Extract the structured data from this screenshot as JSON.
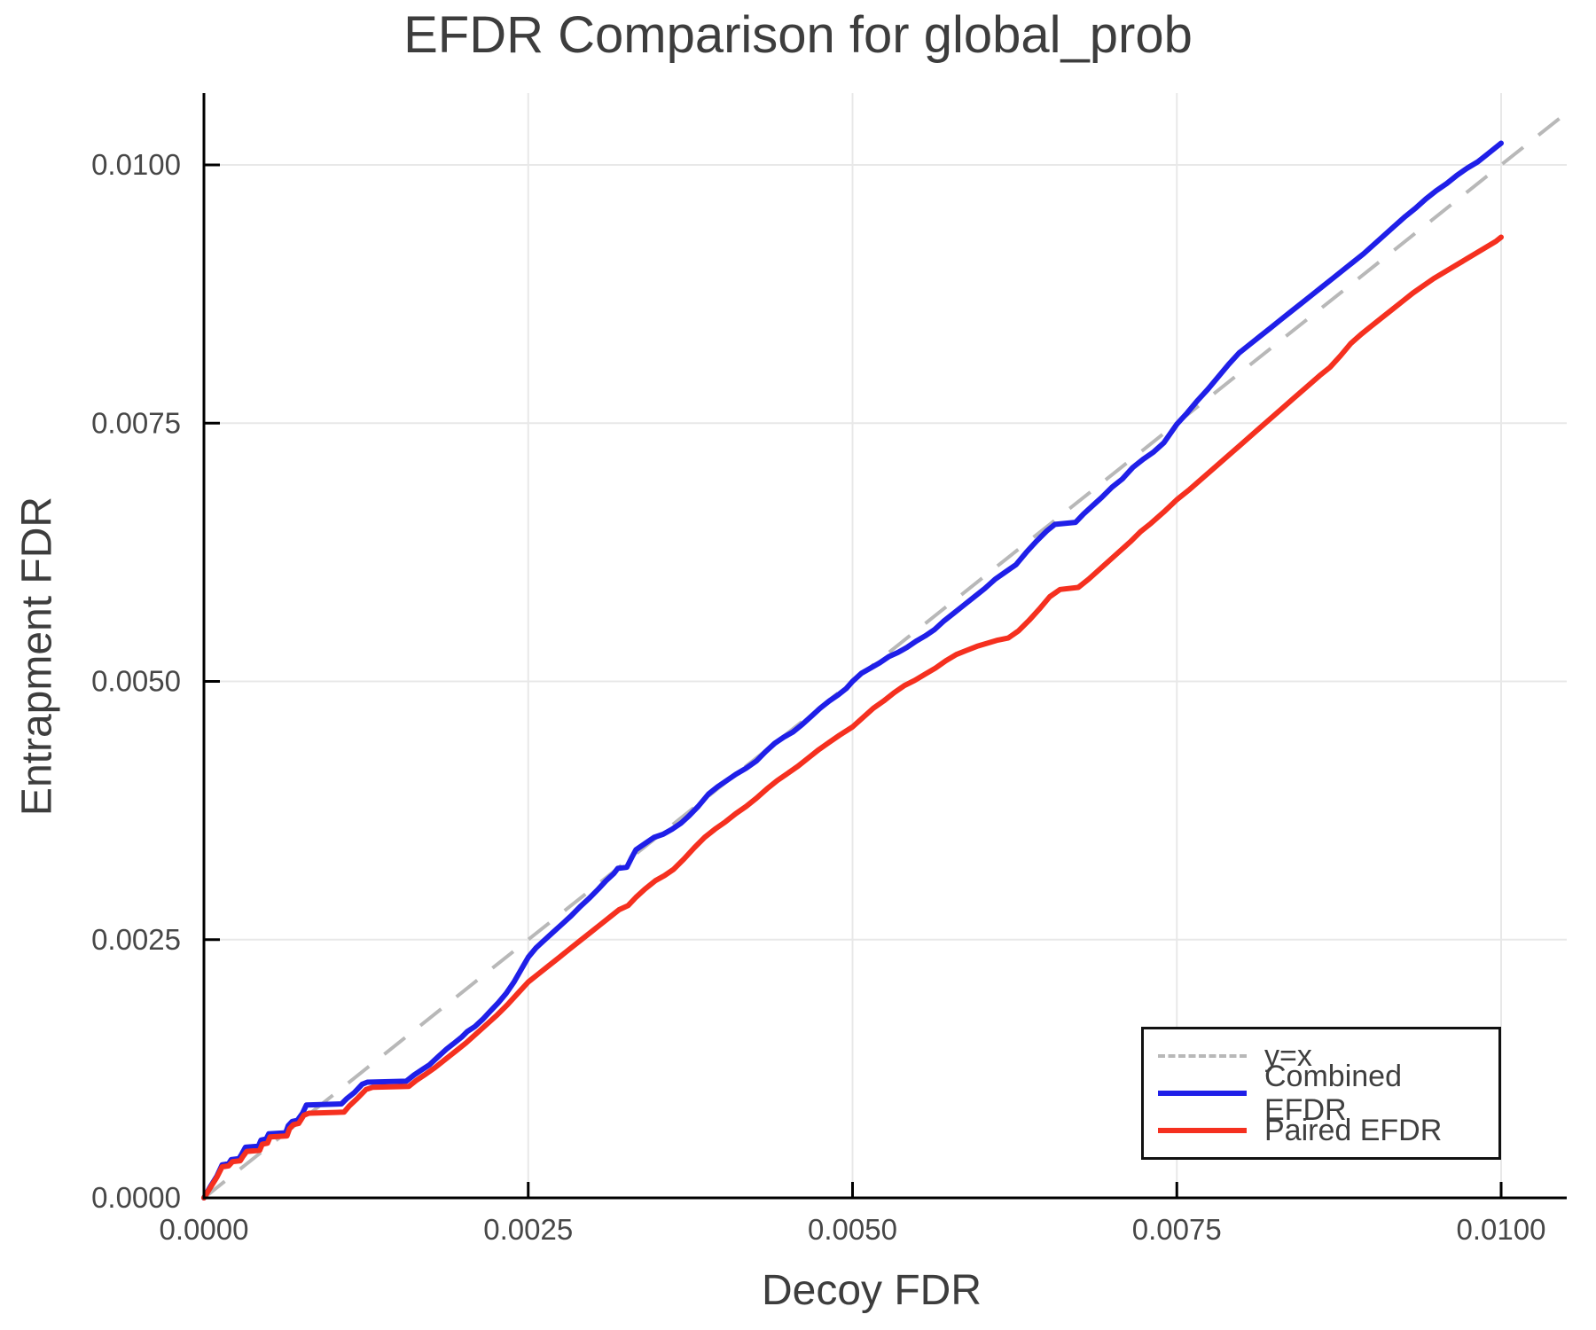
{
  "chart_data": {
    "type": "line",
    "title": "EFDR Comparison for global_prob",
    "xlabel": "Decoy FDR",
    "ylabel": "Entrapment FDR",
    "x_ticks": [
      0.0,
      0.0025,
      0.005,
      0.0075,
      0.01
    ],
    "y_ticks": [
      0.0,
      0.0025,
      0.005,
      0.0075,
      0.01
    ],
    "x_tick_labels": [
      "0.0000",
      "0.0025",
      "0.0050",
      "0.0075",
      "0.0100"
    ],
    "y_tick_labels": [
      "0.0000",
      "0.0025",
      "0.0050",
      "0.0075",
      "0.0100"
    ],
    "xlim": [
      0.0,
      0.0105
    ],
    "ylim": [
      0.0,
      0.0107
    ],
    "grid": true,
    "legend_position": "lower right",
    "colors": {
      "grid": "#e8e8e8",
      "spine": "#000000",
      "tick_label": "#474747",
      "title_text": "#3d3d3d",
      "reference": "#b8b8b8",
      "combined": "#1f1fe8",
      "paired": "#f5301f"
    },
    "reference_line": {
      "label": "y=x",
      "style": "dashed",
      "color": "#b8b8b8",
      "from": [
        0,
        0
      ],
      "slope": 1
    },
    "value_scale": 0.0001,
    "series": [
      {
        "name": "Combined EFDR",
        "color": "#1f1fe8",
        "style": "solid",
        "points": [
          [
            0,
            0
          ],
          [
            0.5,
            1.1
          ],
          [
            1,
            2.1
          ],
          [
            1.4,
            3.2
          ],
          [
            1.9,
            3.3
          ],
          [
            2.1,
            3.7
          ],
          [
            2.7,
            3.8
          ],
          [
            2.9,
            4.2
          ],
          [
            3.2,
            4.9
          ],
          [
            4.2,
            5
          ],
          [
            4.4,
            5.6
          ],
          [
            4.8,
            5.7
          ],
          [
            5,
            6.2
          ],
          [
            6.3,
            6.3
          ],
          [
            6.5,
            7
          ],
          [
            6.8,
            7.4
          ],
          [
            7.2,
            7.5
          ],
          [
            7.6,
            8.2
          ],
          [
            7.9,
            9
          ],
          [
            10.6,
            9.1
          ],
          [
            11,
            9.6
          ],
          [
            11.6,
            10.2
          ],
          [
            12.2,
            11
          ],
          [
            12.6,
            11.2
          ],
          [
            15.6,
            11.3
          ],
          [
            16.2,
            11.9
          ],
          [
            16.8,
            12.4
          ],
          [
            17.4,
            12.9
          ],
          [
            18,
            13.6
          ],
          [
            18.7,
            14.4
          ],
          [
            19.3,
            15
          ],
          [
            19.9,
            15.6
          ],
          [
            20.3,
            16.1
          ],
          [
            20.9,
            16.6
          ],
          [
            21.5,
            17.3
          ],
          [
            22.1,
            18.1
          ],
          [
            22.7,
            18.9
          ],
          [
            23.3,
            19.8
          ],
          [
            23.9,
            20.9
          ],
          [
            24.5,
            22.2
          ],
          [
            25,
            23.3
          ],
          [
            25.6,
            24.2
          ],
          [
            26.2,
            24.9
          ],
          [
            26.9,
            25.7
          ],
          [
            27.6,
            26.5
          ],
          [
            28.3,
            27.3
          ],
          [
            29,
            28.2
          ],
          [
            29.7,
            29
          ],
          [
            30.4,
            29.9
          ],
          [
            31,
            30.7
          ],
          [
            31.6,
            31.4
          ],
          [
            31.9,
            31.9
          ],
          [
            32.6,
            32
          ],
          [
            33,
            33
          ],
          [
            33.3,
            33.7
          ],
          [
            34,
            34.3
          ],
          [
            34.7,
            34.9
          ],
          [
            35.4,
            35.2
          ],
          [
            36.1,
            35.7
          ],
          [
            36.8,
            36.3
          ],
          [
            37.4,
            37
          ],
          [
            38.1,
            37.9
          ],
          [
            38.9,
            39.1
          ],
          [
            39.6,
            39.8
          ],
          [
            40.3,
            40.4
          ],
          [
            41,
            41
          ],
          [
            41.8,
            41.6
          ],
          [
            42.6,
            42.3
          ],
          [
            43.3,
            43.2
          ],
          [
            44,
            44
          ],
          [
            44.7,
            44.6
          ],
          [
            45.4,
            45.1
          ],
          [
            46.1,
            45.8
          ],
          [
            46.8,
            46.6
          ],
          [
            47.5,
            47.4
          ],
          [
            48.2,
            48.1
          ],
          [
            48.9,
            48.7
          ],
          [
            49.5,
            49.3
          ],
          [
            50,
            50
          ],
          [
            50.7,
            50.8
          ],
          [
            51.4,
            51.3
          ],
          [
            52.1,
            51.8
          ],
          [
            52.8,
            52.4
          ],
          [
            53.5,
            52.8
          ],
          [
            54.2,
            53.3
          ],
          [
            54.9,
            53.9
          ],
          [
            55.6,
            54.4
          ],
          [
            56.3,
            55
          ],
          [
            57,
            55.8
          ],
          [
            57.8,
            56.6
          ],
          [
            58.6,
            57.4
          ],
          [
            59.4,
            58.2
          ],
          [
            60.2,
            59
          ],
          [
            61,
            59.9
          ],
          [
            61.8,
            60.6
          ],
          [
            62.6,
            61.3
          ],
          [
            63.4,
            62.5
          ],
          [
            64.2,
            63.6
          ],
          [
            65,
            64.6
          ],
          [
            65.6,
            65.2
          ],
          [
            67.2,
            65.4
          ],
          [
            67.8,
            66.2
          ],
          [
            68.5,
            67
          ],
          [
            69.2,
            67.8
          ],
          [
            70,
            68.8
          ],
          [
            70.8,
            69.6
          ],
          [
            71.6,
            70.7
          ],
          [
            72.4,
            71.5
          ],
          [
            73.2,
            72.2
          ],
          [
            74,
            73.1
          ],
          [
            75,
            74.9
          ],
          [
            75.8,
            76
          ],
          [
            76.6,
            77.2
          ],
          [
            77.4,
            78.3
          ],
          [
            78.2,
            79.5
          ],
          [
            79,
            80.7
          ],
          [
            79.8,
            81.8
          ],
          [
            80.6,
            82.6
          ],
          [
            81.4,
            83.4
          ],
          [
            82.2,
            84.2
          ],
          [
            83,
            85
          ],
          [
            83.8,
            85.8
          ],
          [
            84.6,
            86.6
          ],
          [
            85.4,
            87.4
          ],
          [
            86.2,
            88.2
          ],
          [
            87,
            89
          ],
          [
            87.8,
            89.8
          ],
          [
            88.6,
            90.6
          ],
          [
            89.4,
            91.4
          ],
          [
            90.2,
            92.3
          ],
          [
            91,
            93.2
          ],
          [
            91.8,
            94.1
          ],
          [
            92.6,
            95
          ],
          [
            93.4,
            95.8
          ],
          [
            94.2,
            96.7
          ],
          [
            95,
            97.5
          ],
          [
            95.8,
            98.2
          ],
          [
            96.6,
            99
          ],
          [
            97.4,
            99.7
          ],
          [
            98.2,
            100.3
          ],
          [
            99,
            101.1
          ],
          [
            99.6,
            101.7
          ],
          [
            100,
            102.1
          ]
        ]
      },
      {
        "name": "Paired EFDR",
        "color": "#f5301f",
        "style": "solid",
        "points": [
          [
            0,
            0
          ],
          [
            0.5,
            1
          ],
          [
            1,
            2
          ],
          [
            1.4,
            3
          ],
          [
            1.9,
            3.1
          ],
          [
            2.2,
            3.5
          ],
          [
            2.8,
            3.6
          ],
          [
            3,
            4
          ],
          [
            3.3,
            4.5
          ],
          [
            4.3,
            4.6
          ],
          [
            4.5,
            5.2
          ],
          [
            4.9,
            5.3
          ],
          [
            5.1,
            5.9
          ],
          [
            6.4,
            6
          ],
          [
            6.6,
            6.7
          ],
          [
            6.9,
            7.1
          ],
          [
            7.3,
            7.2
          ],
          [
            7.7,
            8
          ],
          [
            8.1,
            8.2
          ],
          [
            10.8,
            8.3
          ],
          [
            11.2,
            8.9
          ],
          [
            11.8,
            9.6
          ],
          [
            12.5,
            10.5
          ],
          [
            13,
            10.7
          ],
          [
            15.8,
            10.8
          ],
          [
            16.4,
            11.4
          ],
          [
            17,
            11.9
          ],
          [
            17.8,
            12.6
          ],
          [
            18.6,
            13.4
          ],
          [
            19.4,
            14.2
          ],
          [
            20.2,
            15
          ],
          [
            21,
            15.9
          ],
          [
            21.8,
            16.8
          ],
          [
            22.6,
            17.7
          ],
          [
            23.4,
            18.7
          ],
          [
            24.2,
            19.8
          ],
          [
            25,
            20.9
          ],
          [
            25.8,
            21.7
          ],
          [
            26.6,
            22.5
          ],
          [
            27.4,
            23.3
          ],
          [
            28.2,
            24.1
          ],
          [
            29,
            24.9
          ],
          [
            29.8,
            25.7
          ],
          [
            30.6,
            26.5
          ],
          [
            31.4,
            27.3
          ],
          [
            32,
            27.9
          ],
          [
            32.7,
            28.3
          ],
          [
            33.3,
            29.1
          ],
          [
            34,
            29.9
          ],
          [
            34.8,
            30.7
          ],
          [
            35.5,
            31.2
          ],
          [
            36.2,
            31.8
          ],
          [
            37,
            32.8
          ],
          [
            37.8,
            33.9
          ],
          [
            38.6,
            34.9
          ],
          [
            39.4,
            35.7
          ],
          [
            40.2,
            36.4
          ],
          [
            41,
            37.2
          ],
          [
            41.8,
            37.9
          ],
          [
            42.6,
            38.7
          ],
          [
            43.4,
            39.6
          ],
          [
            44.2,
            40.4
          ],
          [
            45,
            41.1
          ],
          [
            45.8,
            41.8
          ],
          [
            46.6,
            42.6
          ],
          [
            47.4,
            43.4
          ],
          [
            48.2,
            44.1
          ],
          [
            49,
            44.8
          ],
          [
            50,
            45.6
          ],
          [
            50.8,
            46.5
          ],
          [
            51.6,
            47.4
          ],
          [
            52.4,
            48.1
          ],
          [
            53.2,
            48.9
          ],
          [
            54,
            49.6
          ],
          [
            54.8,
            50.1
          ],
          [
            55.6,
            50.7
          ],
          [
            56.4,
            51.3
          ],
          [
            57.2,
            52
          ],
          [
            58,
            52.6
          ],
          [
            58.8,
            53
          ],
          [
            59.6,
            53.4
          ],
          [
            60.4,
            53.7
          ],
          [
            61.2,
            54
          ],
          [
            62,
            54.2
          ],
          [
            62.8,
            54.9
          ],
          [
            63.6,
            55.9
          ],
          [
            64.4,
            57
          ],
          [
            65.2,
            58.2
          ],
          [
            66,
            58.9
          ],
          [
            67.4,
            59.1
          ],
          [
            68.2,
            59.9
          ],
          [
            69,
            60.8
          ],
          [
            69.8,
            61.7
          ],
          [
            70.6,
            62.6
          ],
          [
            71.4,
            63.5
          ],
          [
            72.2,
            64.5
          ],
          [
            73,
            65.3
          ],
          [
            74,
            66.4
          ],
          [
            75,
            67.6
          ],
          [
            76,
            68.6
          ],
          [
            77,
            69.7
          ],
          [
            78,
            70.8
          ],
          [
            79,
            71.9
          ],
          [
            80,
            73
          ],
          [
            81,
            74.1
          ],
          [
            82,
            75.2
          ],
          [
            83,
            76.3
          ],
          [
            84,
            77.4
          ],
          [
            85,
            78.5
          ],
          [
            86,
            79.6
          ],
          [
            86.8,
            80.4
          ],
          [
            87.6,
            81.5
          ],
          [
            88.4,
            82.7
          ],
          [
            89.2,
            83.6
          ],
          [
            90,
            84.4
          ],
          [
            90.8,
            85.2
          ],
          [
            91.6,
            86
          ],
          [
            92.4,
            86.8
          ],
          [
            93.2,
            87.6
          ],
          [
            94,
            88.3
          ],
          [
            94.8,
            89
          ],
          [
            95.6,
            89.6
          ],
          [
            96.4,
            90.2
          ],
          [
            97.2,
            90.8
          ],
          [
            98,
            91.4
          ],
          [
            98.8,
            92
          ],
          [
            99.6,
            92.6
          ],
          [
            100,
            93
          ]
        ]
      }
    ],
    "legend": {
      "entries": [
        {
          "label": "y=x",
          "color": "#b8b8b8",
          "dashed": true
        },
        {
          "label": "Combined EFDR",
          "color": "#1f1fe8",
          "dashed": false
        },
        {
          "label": "Paired EFDR",
          "color": "#f5301f",
          "dashed": false
        }
      ]
    }
  }
}
